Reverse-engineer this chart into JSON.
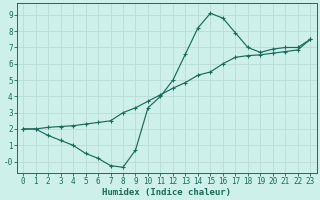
{
  "line1_x": [
    0,
    1,
    2,
    3,
    4,
    5,
    6,
    7,
    8,
    9,
    10,
    11,
    12,
    13,
    14,
    15,
    16,
    17,
    18,
    19,
    20,
    21,
    22,
    23
  ],
  "line1_y": [
    2.0,
    2.0,
    1.6,
    1.3,
    1.0,
    0.5,
    0.2,
    -0.25,
    -0.35,
    0.7,
    3.3,
    4.0,
    5.0,
    6.6,
    8.2,
    9.1,
    8.8,
    7.9,
    7.0,
    6.7,
    6.9,
    7.0,
    7.0,
    7.5
  ],
  "line2_x": [
    0,
    1,
    2,
    3,
    4,
    5,
    6,
    7,
    8,
    9,
    10,
    11,
    12,
    13,
    14,
    15,
    16,
    17,
    18,
    19,
    20,
    21,
    22,
    23
  ],
  "line2_y": [
    2.0,
    2.0,
    2.1,
    2.15,
    2.2,
    2.3,
    2.4,
    2.5,
    3.0,
    3.3,
    3.7,
    4.1,
    4.5,
    4.85,
    5.3,
    5.5,
    6.0,
    6.4,
    6.5,
    6.55,
    6.65,
    6.75,
    6.85,
    7.5
  ],
  "line_color": "#1a6b5a",
  "bg_color": "#cef0eb",
  "grid_color": "#b8dbd6",
  "xlabel": "Humidex (Indice chaleur)",
  "ylim": [
    -0.7,
    9.7
  ],
  "xlim": [
    -0.5,
    23.5
  ],
  "yticks": [
    0,
    1,
    2,
    3,
    4,
    5,
    6,
    7,
    8,
    9
  ],
  "xticks": [
    0,
    1,
    2,
    3,
    4,
    5,
    6,
    7,
    8,
    9,
    10,
    11,
    12,
    13,
    14,
    15,
    16,
    17,
    18,
    19,
    20,
    21,
    22,
    23
  ],
  "xlabel_fontsize": 6.5,
  "tick_fontsize": 5.5,
  "marker_size": 2.2,
  "line_width": 0.85
}
